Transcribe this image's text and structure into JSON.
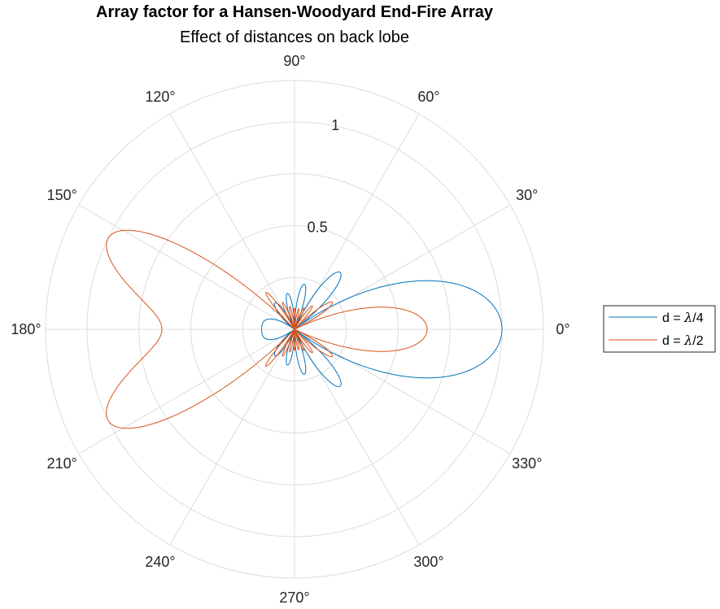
{
  "chart_data": {
    "type": "polar-line",
    "title": "Array factor for a Hansen-Woodyard End-Fire Array",
    "subtitle": "Effect of distances on back lobe",
    "theta_ticks": [
      "0°",
      "30°",
      "60°",
      "90°",
      "120°",
      "150°",
      "180°",
      "210°",
      "240°",
      "270°",
      "300°",
      "330°"
    ],
    "theta_tick_values_deg": [
      0,
      30,
      60,
      90,
      120,
      150,
      180,
      210,
      240,
      270,
      300,
      330
    ],
    "r_ticks": [
      "0.5",
      "1"
    ],
    "r_tick_values": [
      0.5,
      1
    ],
    "rlim": [
      0,
      1.2
    ],
    "grid": true,
    "legend_position": "right",
    "series": [
      {
        "name": "d = λ/4",
        "color": "#0072BD",
        "model": "hansen-woodyard",
        "N": 10,
        "d_over_lambda": 0.25
      },
      {
        "name": "d = λ/2",
        "color": "#D95319",
        "model": "hansen-woodyard",
        "N": 10,
        "d_over_lambda": 0.5
      }
    ]
  },
  "legend": {
    "entries": [
      {
        "prefix": "d = ",
        "lambda": "λ",
        "suffix": "/4"
      },
      {
        "prefix": "d = ",
        "lambda": "λ",
        "suffix": "/2"
      }
    ]
  }
}
